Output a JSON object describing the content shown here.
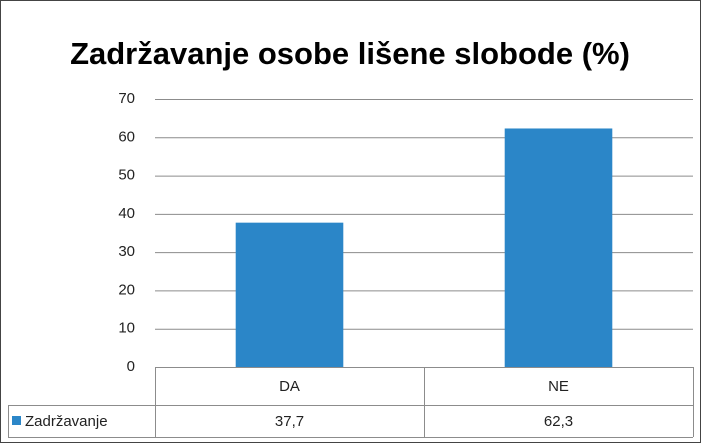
{
  "chart_data": {
    "type": "bar",
    "title": "Zadržavanje osobe lišene slobode (%)",
    "categories": [
      "DA",
      "NE"
    ],
    "series": [
      {
        "name": "Zadržavanje",
        "color": "#2b86c8",
        "values": [
          37.7,
          62.3
        ],
        "value_labels": [
          "37,7",
          "62,3"
        ]
      }
    ],
    "ylim": [
      0,
      70
    ],
    "yticks": [
      0,
      10,
      20,
      30,
      40,
      50,
      60,
      70
    ],
    "grid": true
  }
}
